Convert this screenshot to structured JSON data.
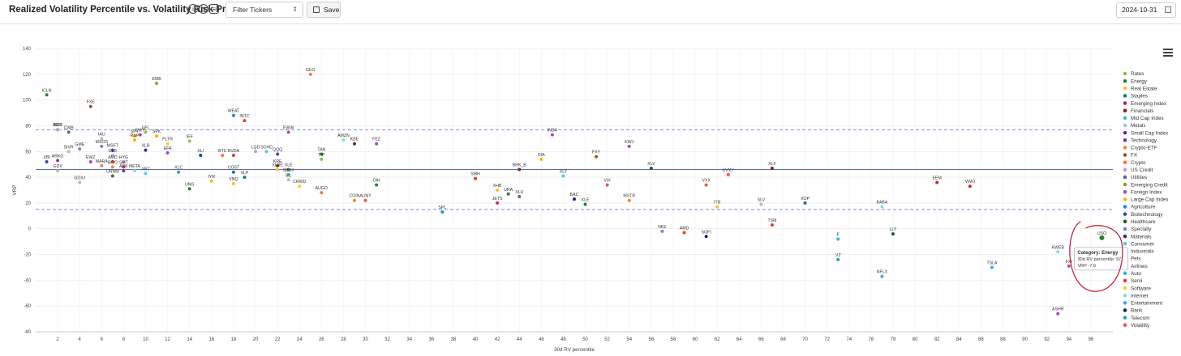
{
  "header": {
    "title": "Realized Volatility Percentile vs. Volatility Risk Premium",
    "info_icon": "info-icon",
    "reset_icon": "reset-icon",
    "comment_icon": "comment-icon",
    "filter_placeholder": "Filter Tickers",
    "save_label": "Save",
    "date_value": "2024-10-31"
  },
  "tooltip": {
    "line1": "Category: Energy",
    "line2": "30d RV percentile: 97",
    "line3": "VRP -7.0"
  },
  "chart_data": {
    "type": "scatter",
    "xlabel": "30d RV percentile",
    "ylabel": "VRP",
    "xlim": [
      0,
      98
    ],
    "ylim": [
      -80,
      140
    ],
    "x_ticks": [
      2,
      4,
      6,
      8,
      10,
      12,
      14,
      16,
      18,
      20,
      22,
      24,
      26,
      28,
      30,
      32,
      34,
      36,
      38,
      40,
      42,
      44,
      46,
      48,
      50,
      52,
      54,
      56,
      58,
      60,
      62,
      64,
      66,
      68,
      70,
      72,
      74,
      76,
      78,
      80,
      82,
      84,
      86,
      88,
      90,
      92,
      94,
      96
    ],
    "y_ticks": [
      140,
      120,
      100,
      80,
      60,
      40,
      20,
      0,
      -20,
      -40,
      -60,
      -80
    ],
    "grid": true,
    "reference_lines": {
      "solid": [
        46
      ],
      "dashed": [
        77,
        15
      ]
    },
    "legend_position": "right",
    "categories": [
      {
        "name": "Rates",
        "color": "#8bc34a"
      },
      {
        "name": "Energy",
        "color": "#2e7d32"
      },
      {
        "name": "Real Estate",
        "color": "#fbc02d"
      },
      {
        "name": "Staples",
        "color": "#00897b"
      },
      {
        "name": "Emerging Index",
        "color": "#c62828"
      },
      {
        "name": "Financials",
        "color": "#6d2b1f"
      },
      {
        "name": "Mid Cap Index",
        "color": "#26c6da"
      },
      {
        "name": "Metals",
        "color": "#b0bec5"
      },
      {
        "name": "Small Cap Index",
        "color": "#7b1fa2"
      },
      {
        "name": "Technology",
        "color": "#673ab7"
      },
      {
        "name": "Crypto-ETF",
        "color": "#ef8a2e"
      },
      {
        "name": "FX",
        "color": "#8d5a2b"
      },
      {
        "name": "Crypto",
        "color": "#ff7043"
      },
      {
        "name": "US Credit",
        "color": "#ce93d8"
      },
      {
        "name": "Utilities",
        "color": "#546e7a"
      },
      {
        "name": "Emerging Credit",
        "color": "#9e9d24"
      },
      {
        "name": "Foreign Index",
        "color": "#ab47bc"
      },
      {
        "name": "Large Cap Index",
        "color": "#ffb300"
      },
      {
        "name": "Agriculture",
        "color": "#1e88e5"
      },
      {
        "name": "Biotechnology",
        "color": "#3949ab"
      },
      {
        "name": "Healthcare",
        "color": "#1b5e20"
      },
      {
        "name": "Specialty",
        "color": "#7986cb"
      },
      {
        "name": "Materials",
        "color": "#283593"
      },
      {
        "name": "Consumer",
        "color": "#4dd0e1"
      },
      {
        "name": "Industrials",
        "color": "#0d47a1"
      },
      {
        "name": "Pets",
        "color": "#9c27b0"
      },
      {
        "name": "Airlines",
        "color": "#e91e63"
      },
      {
        "name": "Auto",
        "color": "#29b6f6"
      },
      {
        "name": "Semi",
        "color": "#e53935"
      },
      {
        "name": "Software",
        "color": "#ffca28"
      },
      {
        "name": "Internet",
        "color": "#80deea"
      },
      {
        "name": "Entertainment",
        "color": "#42a5f5"
      },
      {
        "name": "Bank",
        "color": "#1a237e"
      },
      {
        "name": "Telecom",
        "color": "#26a69a"
      },
      {
        "name": "Volatility",
        "color": "#ef5350"
      }
    ],
    "points": [
      {
        "label": "ICLN",
        "x": 1,
        "y": 104,
        "category": "Energy"
      },
      {
        "label": "EMB",
        "x": 11,
        "y": 113,
        "category": "Emerging Credit"
      },
      {
        "label": "GEO",
        "x": 25,
        "y": 120,
        "category": "Crypto"
      },
      {
        "label": "FXE",
        "x": 5,
        "y": 95,
        "category": "FX"
      },
      {
        "label": "WEAT",
        "x": 18,
        "y": 88,
        "category": "Agriculture"
      },
      {
        "label": "INTC",
        "x": 19,
        "y": 84,
        "category": "Semi"
      },
      {
        "label": "MDY",
        "x": 2,
        "y": 77,
        "category": "Mid Cap Index"
      },
      {
        "label": "AGG",
        "x": 2,
        "y": 77,
        "category": "US Credit"
      },
      {
        "label": "CWB",
        "x": 3,
        "y": 75,
        "category": "Utilities"
      },
      {
        "label": "EWW",
        "x": 23,
        "y": 75,
        "category": "Foreign Index"
      },
      {
        "label": "INDA",
        "x": 47,
        "y": 73,
        "category": "Foreign Index"
      },
      {
        "label": "AMZN",
        "x": 28,
        "y": 69,
        "category": "Internet"
      },
      {
        "label": "KBE",
        "x": 29,
        "y": 66,
        "category": "Financials"
      },
      {
        "label": "FEZ",
        "x": 31,
        "y": 66,
        "category": "Foreign Index"
      },
      {
        "label": "IAU",
        "x": 6,
        "y": 70,
        "category": "Metals"
      },
      {
        "label": "SPY",
        "x": 9,
        "y": 72,
        "category": "Large Cap Index"
      },
      {
        "label": "RSP",
        "x": 9,
        "y": 69,
        "category": "Large Cap Index"
      },
      {
        "label": "EWY",
        "x": 9.5,
        "y": 73,
        "category": "Foreign Index"
      },
      {
        "label": "UFL",
        "x": 10,
        "y": 75,
        "category": "Rates"
      },
      {
        "label": "SPK",
        "x": 11,
        "y": 72,
        "category": "Large Cap Index"
      },
      {
        "label": "PLTR",
        "x": 12,
        "y": 66,
        "category": "Software"
      },
      {
        "label": "IEF",
        "x": 14,
        "y": 68,
        "category": "Rates"
      },
      {
        "label": "MSOS",
        "x": 6,
        "y": 64,
        "category": "Specialty"
      },
      {
        "label": "MSFT",
        "x": 7,
        "y": 61,
        "category": "Technology"
      },
      {
        "label": "SIVR",
        "x": 3,
        "y": 60,
        "category": "Metals"
      },
      {
        "label": "GME",
        "x": 4,
        "y": 62,
        "category": "Specialty"
      },
      {
        "label": "XLB",
        "x": 10,
        "y": 61,
        "category": "Materials"
      },
      {
        "label": "EFA",
        "x": 12,
        "y": 59,
        "category": "Foreign Index"
      },
      {
        "label": "GLD",
        "x": 7,
        "y": 57,
        "category": "Metals"
      },
      {
        "label": "XLI",
        "x": 15,
        "y": 57,
        "category": "Industrials"
      },
      {
        "label": "BTC",
        "x": 17,
        "y": 57,
        "category": "Crypto"
      },
      {
        "label": "NVDA",
        "x": 18,
        "y": 57,
        "category": "Semi"
      },
      {
        "label": "LQD",
        "x": 20,
        "y": 60,
        "category": "US Credit"
      },
      {
        "label": "SCHD",
        "x": 21,
        "y": 60,
        "category": "Consumer"
      },
      {
        "label": "QQQ",
        "x": 22,
        "y": 58,
        "category": "Technology"
      },
      {
        "label": "TAN",
        "x": 26,
        "y": 58,
        "category": "Energy"
      },
      {
        "label": "TIP",
        "x": 26,
        "y": 54,
        "category": "Rates"
      },
      {
        "label": "XBI",
        "x": 1,
        "y": 52,
        "category": "Biotechnology"
      },
      {
        "label": "ARKG",
        "x": 2,
        "y": 53,
        "category": "Pets"
      },
      {
        "label": "EWZ",
        "x": 5,
        "y": 52,
        "category": "Foreign Index"
      },
      {
        "label": "AMD",
        "x": 7,
        "y": 52,
        "category": "Semi"
      },
      {
        "label": "MARA",
        "x": 6,
        "y": 49,
        "category": "Crypto-ETF"
      },
      {
        "label": "HYG",
        "x": 8,
        "y": 52,
        "category": "US Credit"
      },
      {
        "label": "BITO",
        "x": 7,
        "y": 48,
        "category": "Crypto-ETF"
      },
      {
        "label": "SMT",
        "x": 8,
        "y": 48,
        "category": "Semi"
      },
      {
        "label": "KRE",
        "x": 22,
        "y": 49,
        "category": "Financials"
      },
      {
        "label": "XLRE",
        "x": 22,
        "y": 46,
        "category": "Real Estate"
      },
      {
        "label": "XLE",
        "x": 23,
        "y": 46,
        "category": "Energy"
      },
      {
        "label": "ARK",
        "x": 8,
        "y": 45,
        "category": "Technology"
      },
      {
        "label": "META",
        "x": 9,
        "y": 45,
        "category": "Internet"
      },
      {
        "label": "XRT",
        "x": 10,
        "y": 43,
        "category": "Consumer"
      },
      {
        "label": "XLC",
        "x": 13,
        "y": 44,
        "category": "Telecom"
      },
      {
        "label": "COST",
        "x": 18,
        "y": 44,
        "category": "Staples"
      },
      {
        "label": "SBUX",
        "x": 23,
        "y": 42,
        "category": "Consumer"
      },
      {
        "label": "XLP",
        "x": 19,
        "y": 40,
        "category": "Staples"
      },
      {
        "label": "SIL",
        "x": 23,
        "y": 38,
        "category": "Metals"
      },
      {
        "label": "IYR",
        "x": 16,
        "y": 37,
        "category": "Real Estate"
      },
      {
        "label": "VNQ",
        "x": 18,
        "y": 35,
        "category": "Real Estate"
      },
      {
        "label": "CRWD",
        "x": 24,
        "y": 33,
        "category": "Software"
      },
      {
        "label": "UNG",
        "x": 14,
        "y": 31,
        "category": "Energy"
      },
      {
        "label": "AUGO",
        "x": 26,
        "y": 28,
        "category": "Crypto"
      },
      {
        "label": "GDX",
        "x": 2,
        "y": 45,
        "category": "Metals"
      },
      {
        "label": "GDXJ",
        "x": 4,
        "y": 36,
        "category": "Metals"
      },
      {
        "label": "URNM",
        "x": 7,
        "y": 41,
        "category": "Energy"
      },
      {
        "label": "COIN",
        "x": 29,
        "y": 22,
        "category": "Crypto-ETF"
      },
      {
        "label": "AUNY",
        "x": 30,
        "y": 22,
        "category": "Volatility"
      },
      {
        "label": "OIH",
        "x": 31,
        "y": 34,
        "category": "Energy"
      },
      {
        "label": "BRK_B",
        "x": 44,
        "y": 46,
        "category": "Financials"
      },
      {
        "label": "DIA",
        "x": 46,
        "y": 54,
        "category": "Large Cap Index"
      },
      {
        "label": "FXY",
        "x": 51,
        "y": 56,
        "category": "FX"
      },
      {
        "label": "EWJ",
        "x": 54,
        "y": 64,
        "category": "Foreign Index"
      },
      {
        "label": "XLV",
        "x": 56,
        "y": 47,
        "category": "Healthcare"
      },
      {
        "label": "XLF",
        "x": 67,
        "y": 47,
        "category": "Financials"
      },
      {
        "label": "SMH",
        "x": 40,
        "y": 39,
        "category": "Semi"
      },
      {
        "label": "XLY",
        "x": 48,
        "y": 41,
        "category": "Consumer"
      },
      {
        "label": "XHB",
        "x": 42,
        "y": 30,
        "category": "Real Estate"
      },
      {
        "label": "URA",
        "x": 43,
        "y": 27,
        "category": "Energy"
      },
      {
        "label": "XLU",
        "x": 44,
        "y": 25,
        "category": "Utilities"
      },
      {
        "label": "JETS",
        "x": 42,
        "y": 20,
        "category": "Airlines"
      },
      {
        "label": "BAC",
        "x": 49,
        "y": 23,
        "category": "Bank"
      },
      {
        "label": "XLE",
        "x": 50,
        "y": 19,
        "category": "Energy"
      },
      {
        "label": "VIX",
        "x": 52,
        "y": 34,
        "category": "Volatility"
      },
      {
        "label": "MSTR",
        "x": 54,
        "y": 22,
        "category": "Crypto-ETF"
      },
      {
        "label": "VXX",
        "x": 61,
        "y": 34,
        "category": "Volatility"
      },
      {
        "label": "UVXY",
        "x": 63,
        "y": 42,
        "category": "Volatility"
      },
      {
        "label": "ITB",
        "x": 62,
        "y": 17,
        "category": "Real Estate"
      },
      {
        "label": "SLV",
        "x": 66,
        "y": 19,
        "category": "Metals"
      },
      {
        "label": "XOP",
        "x": 70,
        "y": 20,
        "category": "Energy"
      },
      {
        "label": "BABA",
        "x": 77,
        "y": 17,
        "category": "Internet"
      },
      {
        "label": "EEM",
        "x": 82,
        "y": 36,
        "category": "Emerging Index"
      },
      {
        "label": "VWO",
        "x": 85,
        "y": 33,
        "category": "Emerging Index"
      },
      {
        "label": "SPL",
        "x": 37,
        "y": 13,
        "category": "Agriculture"
      },
      {
        "label": "NKE",
        "x": 57,
        "y": -2,
        "category": "Specialty"
      },
      {
        "label": "AMD",
        "x": 59,
        "y": -3,
        "category": "Semi"
      },
      {
        "label": "SOFI",
        "x": 61,
        "y": -6,
        "category": "Bank"
      },
      {
        "label": "TSM",
        "x": 67,
        "y": 3,
        "category": "Semi"
      },
      {
        "label": "F",
        "x": 73,
        "y": -8,
        "category": "Auto"
      },
      {
        "label": "LLY",
        "x": 78,
        "y": -4,
        "category": "Healthcare"
      },
      {
        "label": "VZ",
        "x": 73,
        "y": -24,
        "category": "Telecom"
      },
      {
        "label": "NFLX",
        "x": 77,
        "y": -37,
        "category": "Entertainment"
      },
      {
        "label": "TSLA",
        "x": 87,
        "y": -30,
        "category": "Auto"
      },
      {
        "label": "KWEB",
        "x": 93,
        "y": -18,
        "category": "Internet"
      },
      {
        "label": "FXI",
        "x": 94,
        "y": -29,
        "category": "Foreign Index"
      },
      {
        "label": "USO",
        "x": 97,
        "y": -7,
        "category": "Energy"
      },
      {
        "label": "ASHR",
        "x": 93,
        "y": -66,
        "category": "Foreign Index"
      }
    ]
  }
}
